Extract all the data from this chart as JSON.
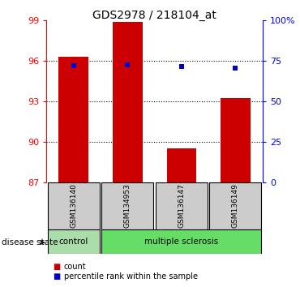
{
  "title": "GDS2978 / 218104_at",
  "samples": [
    "GSM136140",
    "GSM134953",
    "GSM136147",
    "GSM136149"
  ],
  "bar_values": [
    96.3,
    98.85,
    89.5,
    93.2
  ],
  "percentile_values": [
    95.65,
    95.7,
    95.55,
    95.45
  ],
  "ylim_left": [
    87,
    99
  ],
  "ylim_right": [
    0,
    100
  ],
  "yticks_left": [
    87,
    90,
    93,
    96,
    99
  ],
  "yticks_right": [
    0,
    25,
    50,
    75,
    100
  ],
  "ytick_labels_right": [
    "0",
    "25",
    "50",
    "75",
    "100%"
  ],
  "bar_color": "#cc0000",
  "marker_color": "#0000cc",
  "disease_state_label": "disease state",
  "control_color": "#aaddaa",
  "ms_color": "#66dd66",
  "legend_items": [
    "count",
    "percentile rank within the sample"
  ],
  "grid_ticks": [
    90,
    93,
    96
  ],
  "bar_width": 0.55
}
